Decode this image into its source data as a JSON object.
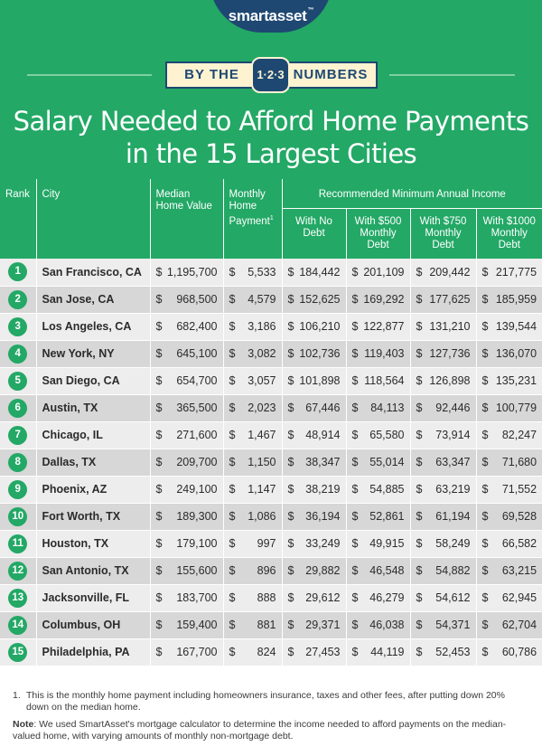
{
  "brand": {
    "name": "smartasset",
    "tm": "™"
  },
  "ribbon": {
    "left": "BY THE",
    "badge": "1·2·3",
    "right": "NUMBERS"
  },
  "title": {
    "line1": "Salary Needed to Afford Home Payments",
    "line2": "in the 15 Largest Cities"
  },
  "headers": {
    "rank": "Rank",
    "city": "City",
    "home_value_1": "Median",
    "home_value_2": "Home Value",
    "payment_1": "Monthly",
    "payment_2": "Home",
    "payment_3": "Payment",
    "payment_sup": "1",
    "group": "Recommended Minimum Annual Income",
    "no_debt_1": "With No",
    "no_debt_2": "Debt",
    "d500_1": "With $500",
    "d500_2": "Monthly",
    "d500_3": "Debt",
    "d750_1": "With $750",
    "d750_2": "Monthly",
    "d750_3": "Debt",
    "d1000_1": "With $1000",
    "d1000_2": "Monthly",
    "d1000_3": "Debt"
  },
  "rows": [
    {
      "rank": "1",
      "city": "San Francisco, CA",
      "home_value": "1,195,700",
      "payment": "5,533",
      "no_debt": "184,442",
      "d500": "201,109",
      "d750": "209,442",
      "d1000": "217,775"
    },
    {
      "rank": "2",
      "city": "San Jose, CA",
      "home_value": "968,500",
      "payment": "4,579",
      "no_debt": "152,625",
      "d500": "169,292",
      "d750": "177,625",
      "d1000": "185,959"
    },
    {
      "rank": "3",
      "city": "Los Angeles, CA",
      "home_value": "682,400",
      "payment": "3,186",
      "no_debt": "106,210",
      "d500": "122,877",
      "d750": "131,210",
      "d1000": "139,544"
    },
    {
      "rank": "4",
      "city": "New York, NY",
      "home_value": "645,100",
      "payment": "3,082",
      "no_debt": "102,736",
      "d500": "119,403",
      "d750": "127,736",
      "d1000": "136,070"
    },
    {
      "rank": "5",
      "city": "San Diego, CA",
      "home_value": "654,700",
      "payment": "3,057",
      "no_debt": "101,898",
      "d500": "118,564",
      "d750": "126,898",
      "d1000": "135,231"
    },
    {
      "rank": "6",
      "city": "Austin, TX",
      "home_value": "365,500",
      "payment": "2,023",
      "no_debt": "67,446",
      "d500": "84,113",
      "d750": "92,446",
      "d1000": "100,779"
    },
    {
      "rank": "7",
      "city": "Chicago, IL",
      "home_value": "271,600",
      "payment": "1,467",
      "no_debt": "48,914",
      "d500": "65,580",
      "d750": "73,914",
      "d1000": "82,247"
    },
    {
      "rank": "8",
      "city": "Dallas, TX",
      "home_value": "209,700",
      "payment": "1,150",
      "no_debt": "38,347",
      "d500": "55,014",
      "d750": "63,347",
      "d1000": "71,680"
    },
    {
      "rank": "9",
      "city": "Phoenix, AZ",
      "home_value": "249,100",
      "payment": "1,147",
      "no_debt": "38,219",
      "d500": "54,885",
      "d750": "63,219",
      "d1000": "71,552"
    },
    {
      "rank": "10",
      "city": "Fort Worth, TX",
      "home_value": "189,300",
      "payment": "1,086",
      "no_debt": "36,194",
      "d500": "52,861",
      "d750": "61,194",
      "d1000": "69,528"
    },
    {
      "rank": "11",
      "city": "Houston, TX",
      "home_value": "179,100",
      "payment": "997",
      "no_debt": "33,249",
      "d500": "49,915",
      "d750": "58,249",
      "d1000": "66,582"
    },
    {
      "rank": "12",
      "city": "San Antonio, TX",
      "home_value": "155,600",
      "payment": "896",
      "no_debt": "29,882",
      "d500": "46,548",
      "d750": "54,882",
      "d1000": "63,215"
    },
    {
      "rank": "13",
      "city": "Jacksonville, FL",
      "home_value": "183,700",
      "payment": "888",
      "no_debt": "29,612",
      "d500": "46,279",
      "d750": "54,612",
      "d1000": "62,945"
    },
    {
      "rank": "14",
      "city": "Columbus, OH",
      "home_value": "159,400",
      "payment": "881",
      "no_debt": "29,371",
      "d500": "46,038",
      "d750": "54,371",
      "d1000": "62,704"
    },
    {
      "rank": "15",
      "city": "Philadelphia, PA",
      "home_value": "167,700",
      "payment": "824",
      "no_debt": "27,453",
      "d500": "44,119",
      "d750": "52,453",
      "d1000": "60,786"
    }
  ],
  "currency_symbol": "$",
  "footnotes": {
    "fn1_num": "1.",
    "fn1_text": "This is the monthly home payment including homeowners insurance, taxes and other fees, after putting down 20% down on the median home.",
    "note_label": "Note",
    "note_text": ": We used SmartAsset's mortgage calculator to determine the income needed to afford payments on the median-valued home, with varying amounts of monthly non-mortgage debt."
  },
  "colors": {
    "green": "#23a866",
    "navy": "#1e4872",
    "cream": "#fdf3d1",
    "row_light": "#ededed",
    "row_dark": "#d7d7d7"
  }
}
